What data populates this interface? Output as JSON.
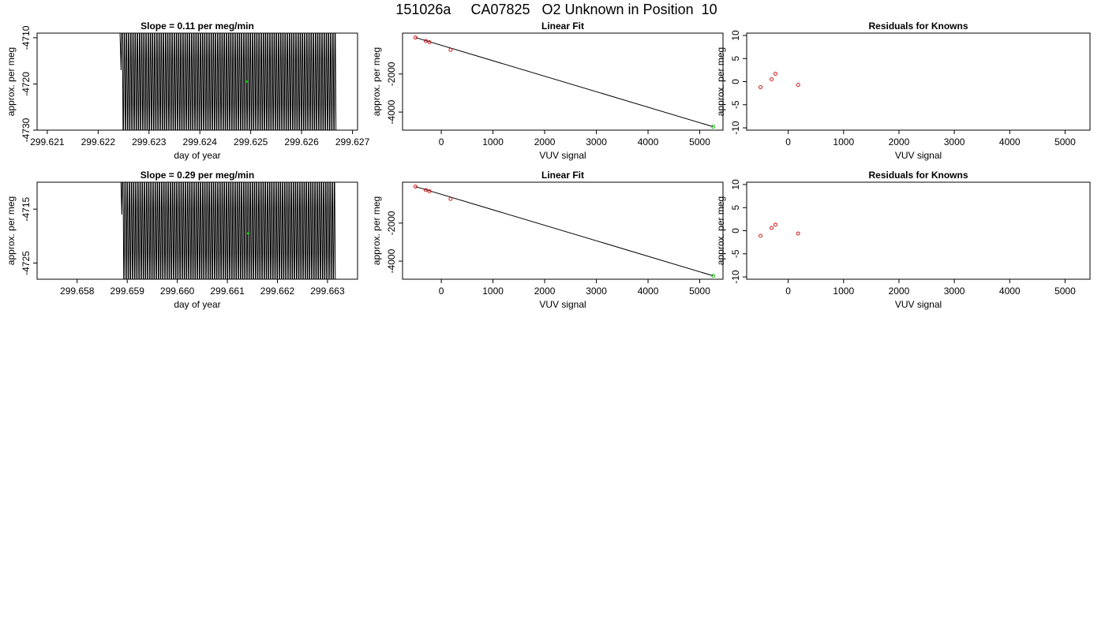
{
  "page": {
    "title": "151026a     CA07825   O2 Unknown in Position  10"
  },
  "colors": {
    "trace": "#000000",
    "known_point": "#cc0000",
    "unknown_point": "#00cc00",
    "frame": "#000000"
  },
  "chart_data": [
    {
      "id": "row1-trace",
      "type": "line",
      "title": "Slope =  0.11  per meg/min",
      "xlabel": "day of year",
      "ylabel": "approx. per meg",
      "xlim": [
        299.6208,
        299.6271
      ],
      "ylim": [
        -4730,
        -4709
      ],
      "x_ticks": [
        299.621,
        299.622,
        299.623,
        299.624,
        299.625,
        299.626,
        299.627
      ],
      "x_tick_labels": [
        "299.621",
        "299.622",
        "299.623",
        "299.624",
        "299.625",
        "299.626",
        "299.627"
      ],
      "y_ticks": [
        -4730,
        -4720,
        -4710
      ],
      "y_tick_labels": [
        "-4730",
        "-4720",
        "-4710"
      ],
      "series": [
        {
          "style": "oscillating_trace",
          "x_start": 299.62243,
          "x_end": 299.62668,
          "n_points": 200,
          "y_low": -4737,
          "y_high": -4702,
          "first_y": -4709,
          "first_low_y": -4717
        }
      ],
      "highlight_point": {
        "x": 299.62492,
        "y": -4719.5
      }
    },
    {
      "id": "row1-fit",
      "type": "scatter",
      "title": "Linear Fit",
      "xlabel": "VUV signal",
      "ylabel": "approx. per meg",
      "xlim": [
        -750,
        5450
      ],
      "ylim": [
        -4950,
        150
      ],
      "x_ticks": [
        0,
        1000,
        2000,
        3000,
        4000,
        5000
      ],
      "x_tick_labels": [
        "0",
        "1000",
        "2000",
        "3000",
        "4000",
        "5000"
      ],
      "y_ticks": [
        -4000,
        -2000
      ],
      "y_tick_labels": [
        "-4000",
        "-2000"
      ],
      "known_points": [
        {
          "x": -500,
          "y": -80
        },
        {
          "x": -300,
          "y": -260
        },
        {
          "x": -230,
          "y": -330
        },
        {
          "x": 180,
          "y": -730
        }
      ],
      "unknown_point": {
        "x": 5260,
        "y": -4770
      },
      "fit_line": {
        "x": [
          -500,
          5260
        ],
        "y": [
          -80,
          -4770
        ]
      }
    },
    {
      "id": "row1-residuals",
      "type": "scatter",
      "title": "Residuals for Knowns",
      "xlabel": "VUV signal",
      "ylabel": "approx. per meg",
      "xlim": [
        -750,
        5450
      ],
      "ylim": [
        -10.5,
        10.5
      ],
      "x_ticks": [
        0,
        1000,
        2000,
        3000,
        4000,
        5000
      ],
      "x_tick_labels": [
        "0",
        "1000",
        "2000",
        "3000",
        "4000",
        "5000"
      ],
      "y_ticks": [
        -10,
        -5,
        0,
        5,
        10
      ],
      "y_tick_labels": [
        "-10",
        "-5",
        "0",
        "5",
        "10"
      ],
      "known_points": [
        {
          "x": -500,
          "y": -1.2
        },
        {
          "x": -300,
          "y": 0.5
        },
        {
          "x": -230,
          "y": 1.7
        },
        {
          "x": 180,
          "y": -0.7
        }
      ]
    },
    {
      "id": "row2-trace",
      "type": "line",
      "title": "Slope =  0.29  per meg/min",
      "xlabel": "day of year",
      "ylabel": "approx. per meg",
      "xlim": [
        299.6572,
        299.6636
      ],
      "ylim": [
        -4728,
        -4710
      ],
      "x_ticks": [
        299.658,
        299.659,
        299.66,
        299.661,
        299.662,
        299.663
      ],
      "x_tick_labels": [
        "299.658",
        "299.659",
        "299.660",
        "299.661",
        "299.662",
        "299.663"
      ],
      "y_ticks": [
        -4725,
        -4715
      ],
      "y_tick_labels": [
        "-4725",
        "-4715"
      ],
      "series": [
        {
          "style": "oscillating_trace",
          "x_start": 299.65887,
          "x_end": 299.66316,
          "n_points": 200,
          "y_low": -4734,
          "y_high": -4704,
          "first_y": -4708,
          "first_low_y": -4716
        }
      ],
      "highlight_point": {
        "x": 299.66141,
        "y": -4719.5
      }
    },
    {
      "id": "row2-fit",
      "type": "scatter",
      "title": "Linear Fit",
      "xlabel": "VUV signal",
      "ylabel": "approx. per meg",
      "xlim": [
        -750,
        5450
      ],
      "ylim": [
        -4950,
        150
      ],
      "x_ticks": [
        0,
        1000,
        2000,
        3000,
        4000,
        5000
      ],
      "x_tick_labels": [
        "0",
        "1000",
        "2000",
        "3000",
        "4000",
        "5000"
      ],
      "y_ticks": [
        -4000,
        -2000
      ],
      "y_tick_labels": [
        "-4000",
        "-2000"
      ],
      "known_points": [
        {
          "x": -500,
          "y": -80
        },
        {
          "x": -300,
          "y": -260
        },
        {
          "x": -230,
          "y": -330
        },
        {
          "x": 180,
          "y": -730
        }
      ],
      "unknown_point": {
        "x": 5260,
        "y": -4770
      },
      "fit_line": {
        "x": [
          -500,
          5260
        ],
        "y": [
          -80,
          -4770
        ]
      }
    },
    {
      "id": "row2-residuals",
      "type": "scatter",
      "title": "Residuals for Knowns",
      "xlabel": "VUV signal",
      "ylabel": "approx. per meg",
      "xlim": [
        -750,
        5450
      ],
      "ylim": [
        -10.5,
        10.5
      ],
      "x_ticks": [
        0,
        1000,
        2000,
        3000,
        4000,
        5000
      ],
      "x_tick_labels": [
        "0",
        "1000",
        "2000",
        "3000",
        "4000",
        "5000"
      ],
      "y_ticks": [
        -10,
        -5,
        0,
        5,
        10
      ],
      "y_tick_labels": [
        "-10",
        "-5",
        "0",
        "5",
        "10"
      ],
      "known_points": [
        {
          "x": -500,
          "y": -1.1
        },
        {
          "x": -300,
          "y": 0.6
        },
        {
          "x": -230,
          "y": 1.3
        },
        {
          "x": 180,
          "y": -0.6
        }
      ]
    }
  ]
}
